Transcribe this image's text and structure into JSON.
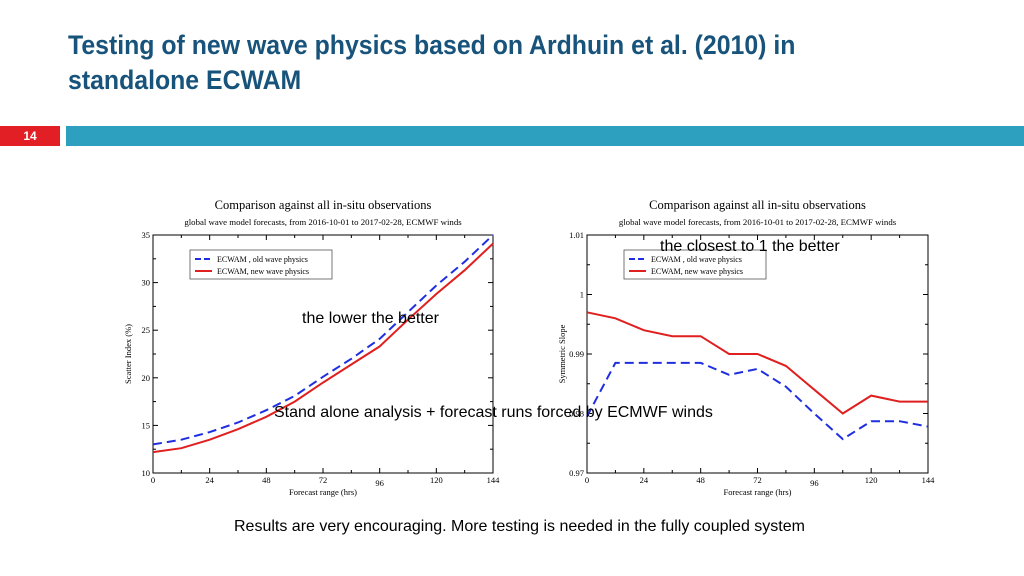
{
  "slide": {
    "title": "Testing of new wave physics based on Ardhuin et al. (2010) in standalone ECWAM",
    "number": "14",
    "accent_color": "#e31f26",
    "band_color": "#2da0bf",
    "title_color": "#17537a"
  },
  "annotations": {
    "lower_better": "the lower the better",
    "closest_one": "the closest to 1 the better",
    "standalone": "Stand alone analysis + forecast runs forced by ECMWF winds"
  },
  "footer": "Results are very encouraging. More testing is needed in the fully coupled system",
  "chart_data": [
    {
      "type": "line",
      "title": "Comparison against all in-situ observations",
      "subtitle": "global wave model forecasts, from 2016-10-01 to 2017-02-28, ECMWF winds",
      "xlabel": "Forecast range (hrs)",
      "ylabel": "Scatter Index (%)",
      "xlim": [
        0,
        144
      ],
      "ylim": [
        10,
        35
      ],
      "xticks": [
        0,
        24,
        48,
        72,
        96,
        120,
        144
      ],
      "yticks": [
        10,
        15,
        20,
        25,
        30,
        35
      ],
      "grid": false,
      "legend_position": "top-left",
      "x": [
        0,
        12,
        24,
        36,
        48,
        60,
        72,
        84,
        96,
        108,
        120,
        132,
        144
      ],
      "series": [
        {
          "name": "ECWAM , old wave physics",
          "color": "#1f2fe0",
          "dash": true,
          "values": [
            13.0,
            13.5,
            14.3,
            15.3,
            16.6,
            18.1,
            20.1,
            22.0,
            24.1,
            26.9,
            29.7,
            32.2,
            35.0
          ]
        },
        {
          "name": "ECWAM, new wave physics",
          "color": "#e01f1f",
          "dash": false,
          "values": [
            12.2,
            12.6,
            13.5,
            14.6,
            15.9,
            17.5,
            19.5,
            21.4,
            23.3,
            26.1,
            28.8,
            31.3,
            34.1
          ]
        }
      ]
    },
    {
      "type": "line",
      "title": "Comparison against all in-situ observations",
      "subtitle": "global wave model forecasts, from 2016-10-01 to 2017-02-28, ECMWF winds",
      "xlabel": "Forecast range (hrs)",
      "ylabel": "Symmetric Slope",
      "xlim": [
        0,
        144
      ],
      "ylim": [
        0.97,
        1.01
      ],
      "xticks": [
        0,
        24,
        48,
        72,
        96,
        120,
        144
      ],
      "yticks": [
        0.97,
        0.98,
        0.99,
        1,
        1.01
      ],
      "grid": false,
      "legend_position": "top-left",
      "x": [
        0,
        12,
        24,
        36,
        48,
        60,
        72,
        84,
        96,
        108,
        120,
        132,
        144
      ],
      "series": [
        {
          "name": "ECWAM , old wave physics",
          "color": "#1f2fe0",
          "dash": true,
          "values": [
            0.9795,
            0.9885,
            0.9885,
            0.9885,
            0.9885,
            0.9865,
            0.9875,
            0.9845,
            0.98,
            0.9757,
            0.9787,
            0.9787,
            0.9778
          ]
        },
        {
          "name": "ECWAM, new wave physics",
          "color": "#e01f1f",
          "dash": false,
          "values": [
            0.997,
            0.996,
            0.994,
            0.993,
            0.993,
            0.99,
            0.99,
            0.988,
            0.984,
            0.98,
            0.983,
            0.982,
            0.982
          ]
        }
      ]
    }
  ]
}
